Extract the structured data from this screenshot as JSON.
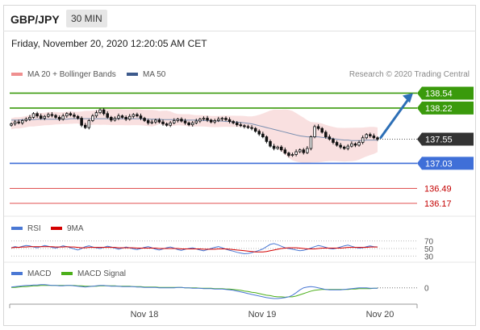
{
  "header": {
    "symbol": "GBP/JPY",
    "timeframe": "30 MIN"
  },
  "timestamp": "Friday, November 20, 2020 12:20:05 AM CET",
  "copyright": "Research © 2020 Trading Central",
  "legend": {
    "main": [
      {
        "label": "MA 20 + Bollinger Bands",
        "color": "#ef8f8f"
      },
      {
        "label": "MA 50",
        "color": "#3d5a8c"
      }
    ],
    "rsi": [
      {
        "label": "RSI",
        "color": "#4a78d4"
      },
      {
        "label": "9MA",
        "color": "#d40000"
      }
    ],
    "macd": [
      {
        "label": "MACD",
        "color": "#4a78d4"
      },
      {
        "label": "MACD Signal",
        "color": "#4caf1a"
      }
    ]
  },
  "chart_data": [
    {
      "type": "candlestick",
      "y_range": [
        136.1,
        138.6
      ],
      "levels": [
        {
          "value": 138.54,
          "label": "138.54",
          "color": "#3a9a0c",
          "kind": "resistance"
        },
        {
          "value": 138.22,
          "label": "138.22",
          "color": "#3a9a0c",
          "kind": "resistance"
        },
        {
          "value": 137.55,
          "label": "137.55",
          "color": "#333333",
          "kind": "last-price"
        },
        {
          "value": 137.03,
          "label": "137.03",
          "color": "#3f6fd8",
          "kind": "pivot"
        },
        {
          "value": 136.49,
          "label": "136.49",
          "color": "#e05252",
          "kind": "support"
        },
        {
          "value": 136.17,
          "label": "136.17",
          "color": "#e05252",
          "kind": "support"
        }
      ],
      "close_series": [
        137.88,
        137.92,
        137.9,
        137.95,
        137.98,
        138.02,
        138.1,
        138.05,
        138.0,
        138.04,
        138.08,
        138.06,
        138.02,
        137.98,
        138.05,
        138.1,
        138.07,
        138.04,
        138.0,
        137.85,
        137.8,
        137.95,
        138.05,
        138.12,
        138.18,
        138.1,
        138.02,
        137.96,
        138.0,
        138.05,
        138.02,
        137.98,
        138.04,
        138.08,
        138.05,
        138.0,
        137.95,
        137.9,
        137.92,
        137.96,
        137.92,
        137.88,
        137.85,
        137.9,
        137.95,
        137.98,
        137.94,
        137.9,
        137.86,
        137.9,
        137.94,
        137.98,
        138.0,
        137.96,
        137.92,
        137.95,
        137.98,
        138.0,
        137.97,
        137.93,
        137.9,
        137.86,
        137.84,
        137.82,
        137.8,
        137.78,
        137.72,
        137.66,
        137.6,
        137.5,
        137.4,
        137.35,
        137.38,
        137.32,
        137.25,
        137.2,
        137.22,
        137.28,
        137.32,
        137.26,
        137.35,
        137.6,
        137.82,
        137.78,
        137.7,
        137.6,
        137.55,
        137.48,
        137.42,
        137.38,
        137.35,
        137.4,
        137.45,
        137.42,
        137.48,
        137.58,
        137.65,
        137.62,
        137.58,
        137.55
      ],
      "ma50": [
        137.96,
        137.96,
        137.96,
        137.97,
        137.97,
        137.97,
        137.97,
        137.98,
        137.98,
        137.98,
        137.98,
        137.98,
        137.98,
        137.98,
        137.98,
        137.98,
        137.99,
        137.99,
        137.99,
        137.99,
        137.99,
        137.99,
        137.99,
        137.99,
        137.99,
        137.99,
        137.99,
        137.99,
        137.99,
        137.99,
        137.99,
        137.99,
        137.99,
        137.99,
        137.99,
        137.99,
        137.98,
        137.98,
        137.98,
        137.98,
        137.98,
        137.97,
        137.97,
        137.97,
        137.97,
        137.97,
        137.96,
        137.96,
        137.96,
        137.96,
        137.96,
        137.95,
        137.95,
        137.95,
        137.95,
        137.94,
        137.94,
        137.94,
        137.93,
        137.93,
        137.92,
        137.92,
        137.91,
        137.9,
        137.89,
        137.88,
        137.86,
        137.84,
        137.82,
        137.8,
        137.78,
        137.76,
        137.74,
        137.72,
        137.7,
        137.68,
        137.66,
        137.64,
        137.62,
        137.61,
        137.6,
        137.6,
        137.6,
        137.6,
        137.59,
        137.58,
        137.57,
        137.56,
        137.55,
        137.54,
        137.53,
        137.53,
        137.52,
        137.52,
        137.52,
        137.52,
        137.53,
        137.53,
        137.53,
        137.53
      ],
      "projection": {
        "from": 137.55,
        "to": 138.54
      },
      "x_ticks": [
        "Nov 18",
        "Nov 19",
        "Nov 20"
      ]
    },
    {
      "type": "line",
      "name": "RSI",
      "ticks": [
        "70",
        "50",
        "30"
      ],
      "y_range": [
        20,
        80
      ],
      "rsi": [
        52,
        55,
        53,
        56,
        58,
        57,
        54,
        52,
        55,
        58,
        56,
        53,
        51,
        54,
        57,
        55,
        52,
        49,
        46,
        50,
        55,
        57,
        54,
        52,
        50,
        53,
        56,
        54,
        51,
        48,
        51,
        54,
        52,
        49,
        47,
        50,
        53,
        55,
        52,
        48,
        46,
        49,
        52,
        54,
        51,
        47,
        45,
        48,
        50,
        52,
        49,
        46,
        44,
        47,
        50,
        53,
        55,
        52,
        48,
        45,
        43,
        40,
        38,
        36,
        37,
        39,
        42,
        45,
        49,
        55,
        61,
        63,
        60,
        56,
        52,
        50,
        48,
        46,
        44,
        45,
        48,
        51,
        55,
        58,
        56,
        53,
        50,
        49,
        51,
        54,
        57,
        59,
        56,
        53,
        51,
        52,
        55,
        57,
        55,
        54
      ],
      "ma9": [
        52,
        53,
        53,
        54,
        54,
        55,
        55,
        55,
        55,
        55,
        55,
        55,
        54,
        54,
        54,
        55,
        54,
        54,
        53,
        52,
        52,
        53,
        53,
        53,
        53,
        53,
        53,
        53,
        53,
        52,
        52,
        52,
        52,
        52,
        51,
        51,
        51,
        51,
        51,
        51,
        50,
        50,
        50,
        50,
        50,
        50,
        49,
        49,
        49,
        49,
        49,
        49,
        48,
        48,
        48,
        48,
        49,
        49,
        49,
        48,
        47,
        46,
        45,
        44,
        43,
        42,
        41,
        41,
        41,
        42,
        44,
        46,
        48,
        50,
        51,
        52,
        52,
        52,
        51,
        50,
        49,
        49,
        49,
        50,
        51,
        51,
        51,
        51,
        51,
        51,
        52,
        53,
        53,
        53,
        53,
        53,
        53,
        54,
        54,
        54
      ]
    },
    {
      "type": "line",
      "name": "MACD",
      "ticks": [
        "0"
      ],
      "y_range": [
        -0.3,
        0.25
      ],
      "macd": [
        0.02,
        0.03,
        0.04,
        0.05,
        0.06,
        0.06,
        0.07,
        0.07,
        0.08,
        0.08,
        0.07,
        0.06,
        0.06,
        0.05,
        0.05,
        0.06,
        0.06,
        0.05,
        0.04,
        0.03,
        0.02,
        0.03,
        0.04,
        0.05,
        0.06,
        0.06,
        0.05,
        0.04,
        0.04,
        0.04,
        0.03,
        0.03,
        0.03,
        0.03,
        0.02,
        0.02,
        0.01,
        0.01,
        0.01,
        0.01,
        0.0,
        0.0,
        0.0,
        0.0,
        0.0,
        0.01,
        0.01,
        0.0,
        0.0,
        -0.01,
        -0.01,
        -0.01,
        -0.02,
        -0.02,
        -0.02,
        -0.03,
        -0.03,
        -0.03,
        -0.04,
        -0.05,
        -0.06,
        -0.08,
        -0.1,
        -0.12,
        -0.14,
        -0.16,
        -0.18,
        -0.2,
        -0.22,
        -0.24,
        -0.25,
        -0.26,
        -0.26,
        -0.25,
        -0.24,
        -0.22,
        -0.18,
        -0.12,
        -0.05,
        0.0,
        0.02,
        0.03,
        0.02,
        0.0,
        -0.02,
        -0.04,
        -0.05,
        -0.05,
        -0.05,
        -0.05,
        -0.04,
        -0.03,
        -0.02,
        -0.01,
        0.0,
        0.0,
        0.0,
        -0.01,
        -0.01,
        -0.01
      ],
      "signal": [
        0.01,
        0.01,
        0.02,
        0.03,
        0.03,
        0.04,
        0.05,
        0.05,
        0.06,
        0.06,
        0.06,
        0.06,
        0.06,
        0.06,
        0.06,
        0.06,
        0.06,
        0.06,
        0.05,
        0.05,
        0.04,
        0.04,
        0.04,
        0.04,
        0.05,
        0.05,
        0.05,
        0.05,
        0.05,
        0.04,
        0.04,
        0.04,
        0.04,
        0.03,
        0.03,
        0.03,
        0.02,
        0.02,
        0.02,
        0.02,
        0.01,
        0.01,
        0.01,
        0.01,
        0.01,
        0.01,
        0.01,
        0.0,
        0.0,
        0.0,
        0.0,
        -0.01,
        -0.01,
        -0.01,
        -0.01,
        -0.02,
        -0.02,
        -0.02,
        -0.03,
        -0.03,
        -0.04,
        -0.05,
        -0.06,
        -0.08,
        -0.09,
        -0.11,
        -0.12,
        -0.14,
        -0.16,
        -0.18,
        -0.19,
        -0.21,
        -0.22,
        -0.22,
        -0.23,
        -0.22,
        -0.22,
        -0.2,
        -0.17,
        -0.14,
        -0.11,
        -0.08,
        -0.06,
        -0.05,
        -0.04,
        -0.04,
        -0.04,
        -0.04,
        -0.04,
        -0.04,
        -0.04,
        -0.04,
        -0.03,
        -0.03,
        -0.02,
        -0.02,
        -0.02,
        -0.02,
        -0.01,
        -0.01
      ]
    }
  ]
}
